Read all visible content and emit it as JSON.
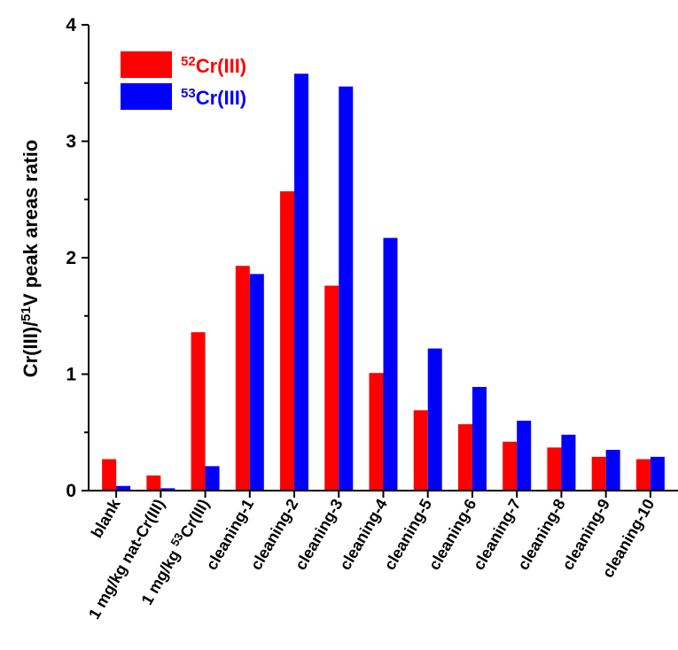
{
  "chart_data": {
    "type": "bar",
    "categories": [
      "blank",
      "1 mg/kg nat-Cr(III)",
      "1 mg/kg 53Cr(III)",
      "cleaning-1",
      "cleaning-2",
      "cleaning-3",
      "cleaning-4",
      "cleaning-5",
      "cleaning-6",
      "cleaning-7",
      "cleaning-8",
      "cleaning-9",
      "cleaning-10"
    ],
    "series": [
      {
        "name": "52Cr(III)",
        "color": "#ff0000",
        "values": [
          0.27,
          0.13,
          1.36,
          1.93,
          2.57,
          1.76,
          1.01,
          0.69,
          0.57,
          0.42,
          0.37,
          0.29,
          0.27
        ]
      },
      {
        "name": "53Cr(III)",
        "color": "#0000ff",
        "values": [
          0.04,
          0.02,
          0.21,
          1.86,
          3.58,
          3.47,
          2.17,
          1.22,
          0.89,
          0.6,
          0.48,
          0.35,
          0.29
        ]
      }
    ],
    "ylabel": "Cr(III)/51V peak areas ratio",
    "ylim": [
      0,
      4
    ],
    "yticks": [
      "0",
      "1",
      "2",
      "3",
      "4"
    ],
    "legend": [
      {
        "mass": "52",
        "text": "Cr(III)"
      },
      {
        "mass": "53",
        "text": "Cr(III)"
      }
    ],
    "legend_position": "top-left",
    "grid": false
  }
}
